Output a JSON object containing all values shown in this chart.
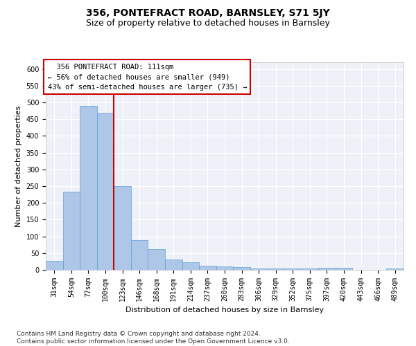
{
  "title": "356, PONTEFRACT ROAD, BARNSLEY, S71 5JY",
  "subtitle": "Size of property relative to detached houses in Barnsley",
  "xlabel": "Distribution of detached houses by size in Barnsley",
  "ylabel": "Number of detached properties",
  "categories": [
    "31sqm",
    "54sqm",
    "77sqm",
    "100sqm",
    "123sqm",
    "146sqm",
    "168sqm",
    "191sqm",
    "214sqm",
    "237sqm",
    "260sqm",
    "283sqm",
    "306sqm",
    "329sqm",
    "352sqm",
    "375sqm",
    "397sqm",
    "420sqm",
    "443sqm",
    "466sqm",
    "489sqm"
  ],
  "values": [
    27,
    233,
    490,
    470,
    250,
    88,
    62,
    32,
    22,
    13,
    11,
    9,
    5,
    4,
    4,
    4,
    6,
    6,
    1,
    1,
    5
  ],
  "bar_color": "#aec6e8",
  "bar_edge_color": "#5a9fd4",
  "property_label": "356 PONTEFRACT ROAD: 111sqm",
  "pct_smaller": 56,
  "n_smaller": 949,
  "pct_semi_larger": 43,
  "n_semi_larger": 735,
  "vline_bin_index": 3,
  "vline_color": "#cc0000",
  "annotation_box_color": "#cc0000",
  "ylim": [
    0,
    620
  ],
  "yticks": [
    0,
    50,
    100,
    150,
    200,
    250,
    300,
    350,
    400,
    450,
    500,
    550,
    600
  ],
  "background_color": "#eef2f8",
  "grid_color": "#ffffff",
  "footnote": "Contains HM Land Registry data © Crown copyright and database right 2024.\nContains public sector information licensed under the Open Government Licence v3.0.",
  "title_fontsize": 10,
  "subtitle_fontsize": 9,
  "axis_label_fontsize": 8,
  "tick_fontsize": 7,
  "annotation_fontsize": 7.5,
  "footnote_fontsize": 6.5
}
